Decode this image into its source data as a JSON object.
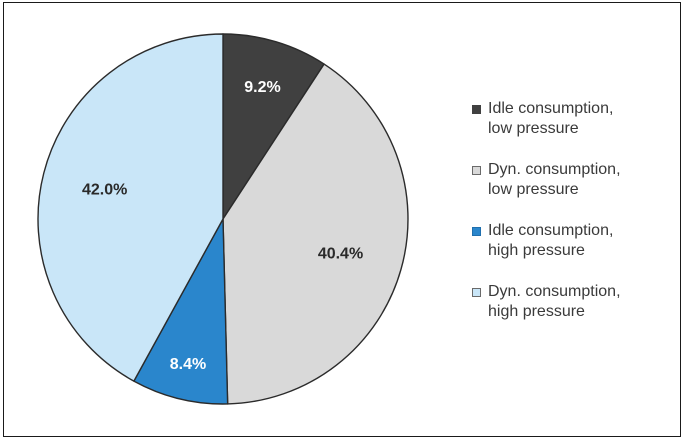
{
  "chart_data": {
    "type": "pie",
    "title": "",
    "start_angle_deg": 0,
    "direction": "clockwise",
    "slices": [
      {
        "label_lines": [
          "Idle consumption,",
          "low pressure"
        ],
        "value": 9.2,
        "value_label": "9.2%",
        "color": "#404040",
        "label_color": "#ffffff"
      },
      {
        "label_lines": [
          "Dyn. consumption,",
          "low pressure"
        ],
        "value": 40.4,
        "value_label": "40.4%",
        "color": "#d9d9d9",
        "label_color": "#2a2a2a"
      },
      {
        "label_lines": [
          "Idle consumption,",
          "high pressure"
        ],
        "value": 8.4,
        "value_label": "8.4%",
        "color": "#2a86cc",
        "label_color": "#ffffff"
      },
      {
        "label_lines": [
          "Dyn. consumption,",
          "high pressure"
        ],
        "value": 42.0,
        "value_label": "42.0%",
        "color": "#c9e6f8",
        "label_color": "#2a2a2a"
      }
    ],
    "legend_position": "right"
  }
}
